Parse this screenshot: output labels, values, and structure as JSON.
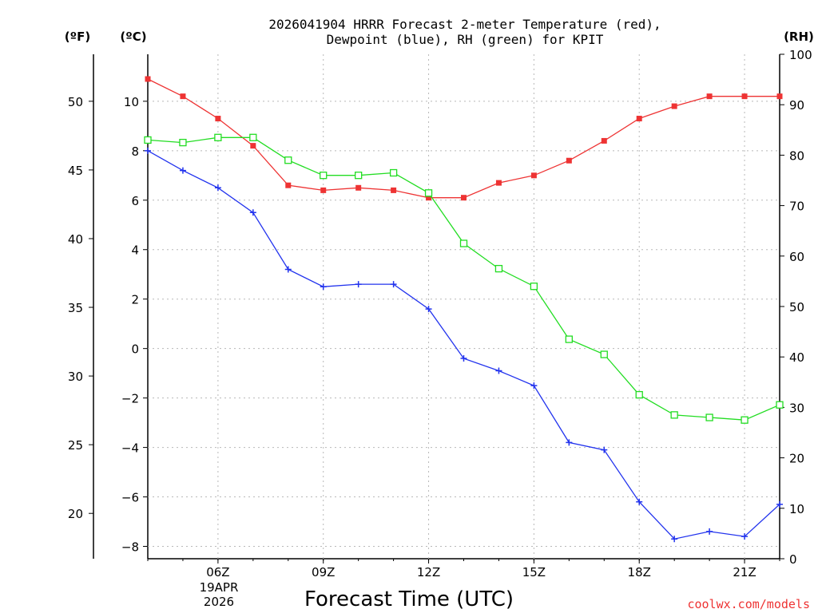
{
  "chart_data": {
    "type": "line",
    "title_line1": "2026041904 HRRR Forecast 2-meter Temperature (red),",
    "title_line2": "Dewpoint (blue), RH (green) for KPIT",
    "xlabel": "Forecast Time (UTC)",
    "unit_f": "(ºF)",
    "unit_c": "(ºC)",
    "unit_rh": "(RH)",
    "date_day": "19APR",
    "date_year": "2026",
    "credit": "coolwx.com/models",
    "x": [
      4,
      5,
      6,
      7,
      8,
      9,
      10,
      11,
      12,
      13,
      14,
      15,
      16,
      17,
      18,
      19,
      20,
      21,
      22
    ],
    "xlim": [
      4,
      22
    ],
    "x_ticks": [
      6,
      9,
      12,
      15,
      18,
      21
    ],
    "x_tick_labels": [
      "06Z",
      "09Z",
      "12Z",
      "15Z",
      "18Z",
      "21Z"
    ],
    "ylim_c": [
      -8.5,
      11.9
    ],
    "y_ticks_c": [
      -8,
      -6,
      -4,
      -2,
      0,
      2,
      4,
      6,
      8,
      10
    ],
    "y_tick_labels_c": [
      "-8",
      "-6",
      "-4",
      "-2",
      "0",
      "2",
      "4",
      "6",
      "8",
      "10"
    ],
    "y_ticks_f": [
      20,
      25,
      30,
      35,
      40,
      45,
      50
    ],
    "y_tick_labels_f": [
      "20",
      "25",
      "30",
      "35",
      "40",
      "45",
      "50"
    ],
    "ylim_rh": [
      0,
      100
    ],
    "y_ticks_rh": [
      0,
      10,
      20,
      30,
      40,
      50,
      60,
      70,
      80,
      90,
      100
    ],
    "y_tick_labels_rh": [
      "0",
      "10",
      "20",
      "30",
      "40",
      "50",
      "60",
      "70",
      "80",
      "90",
      "100"
    ],
    "series": [
      {
        "name": "Temperature",
        "axis": "c",
        "color": "#ee3333",
        "marker": "filled-square",
        "values": [
          10.9,
          10.2,
          9.3,
          8.2,
          6.6,
          6.4,
          6.5,
          6.4,
          6.1,
          6.1,
          6.7,
          7.0,
          7.6,
          8.4,
          9.3,
          9.8,
          10.2,
          10.2,
          10.2
        ]
      },
      {
        "name": "Dewpoint",
        "axis": "c",
        "color": "#2233ee",
        "marker": "plus",
        "values": [
          8.0,
          7.2,
          6.5,
          5.5,
          3.2,
          2.5,
          2.6,
          2.6,
          1.6,
          -0.4,
          -0.9,
          -1.5,
          -3.8,
          -4.1,
          -6.2,
          -7.7,
          -7.4,
          -7.6,
          -6.3
        ]
      },
      {
        "name": "RH",
        "axis": "rh",
        "color": "#22dd22",
        "marker": "open-square",
        "values": [
          83,
          82.5,
          83.5,
          83.5,
          79,
          76,
          76,
          76.5,
          72.5,
          62.5,
          57.5,
          54,
          43.5,
          40.5,
          32.5,
          28.5,
          28,
          27.5,
          30.5
        ]
      }
    ]
  }
}
